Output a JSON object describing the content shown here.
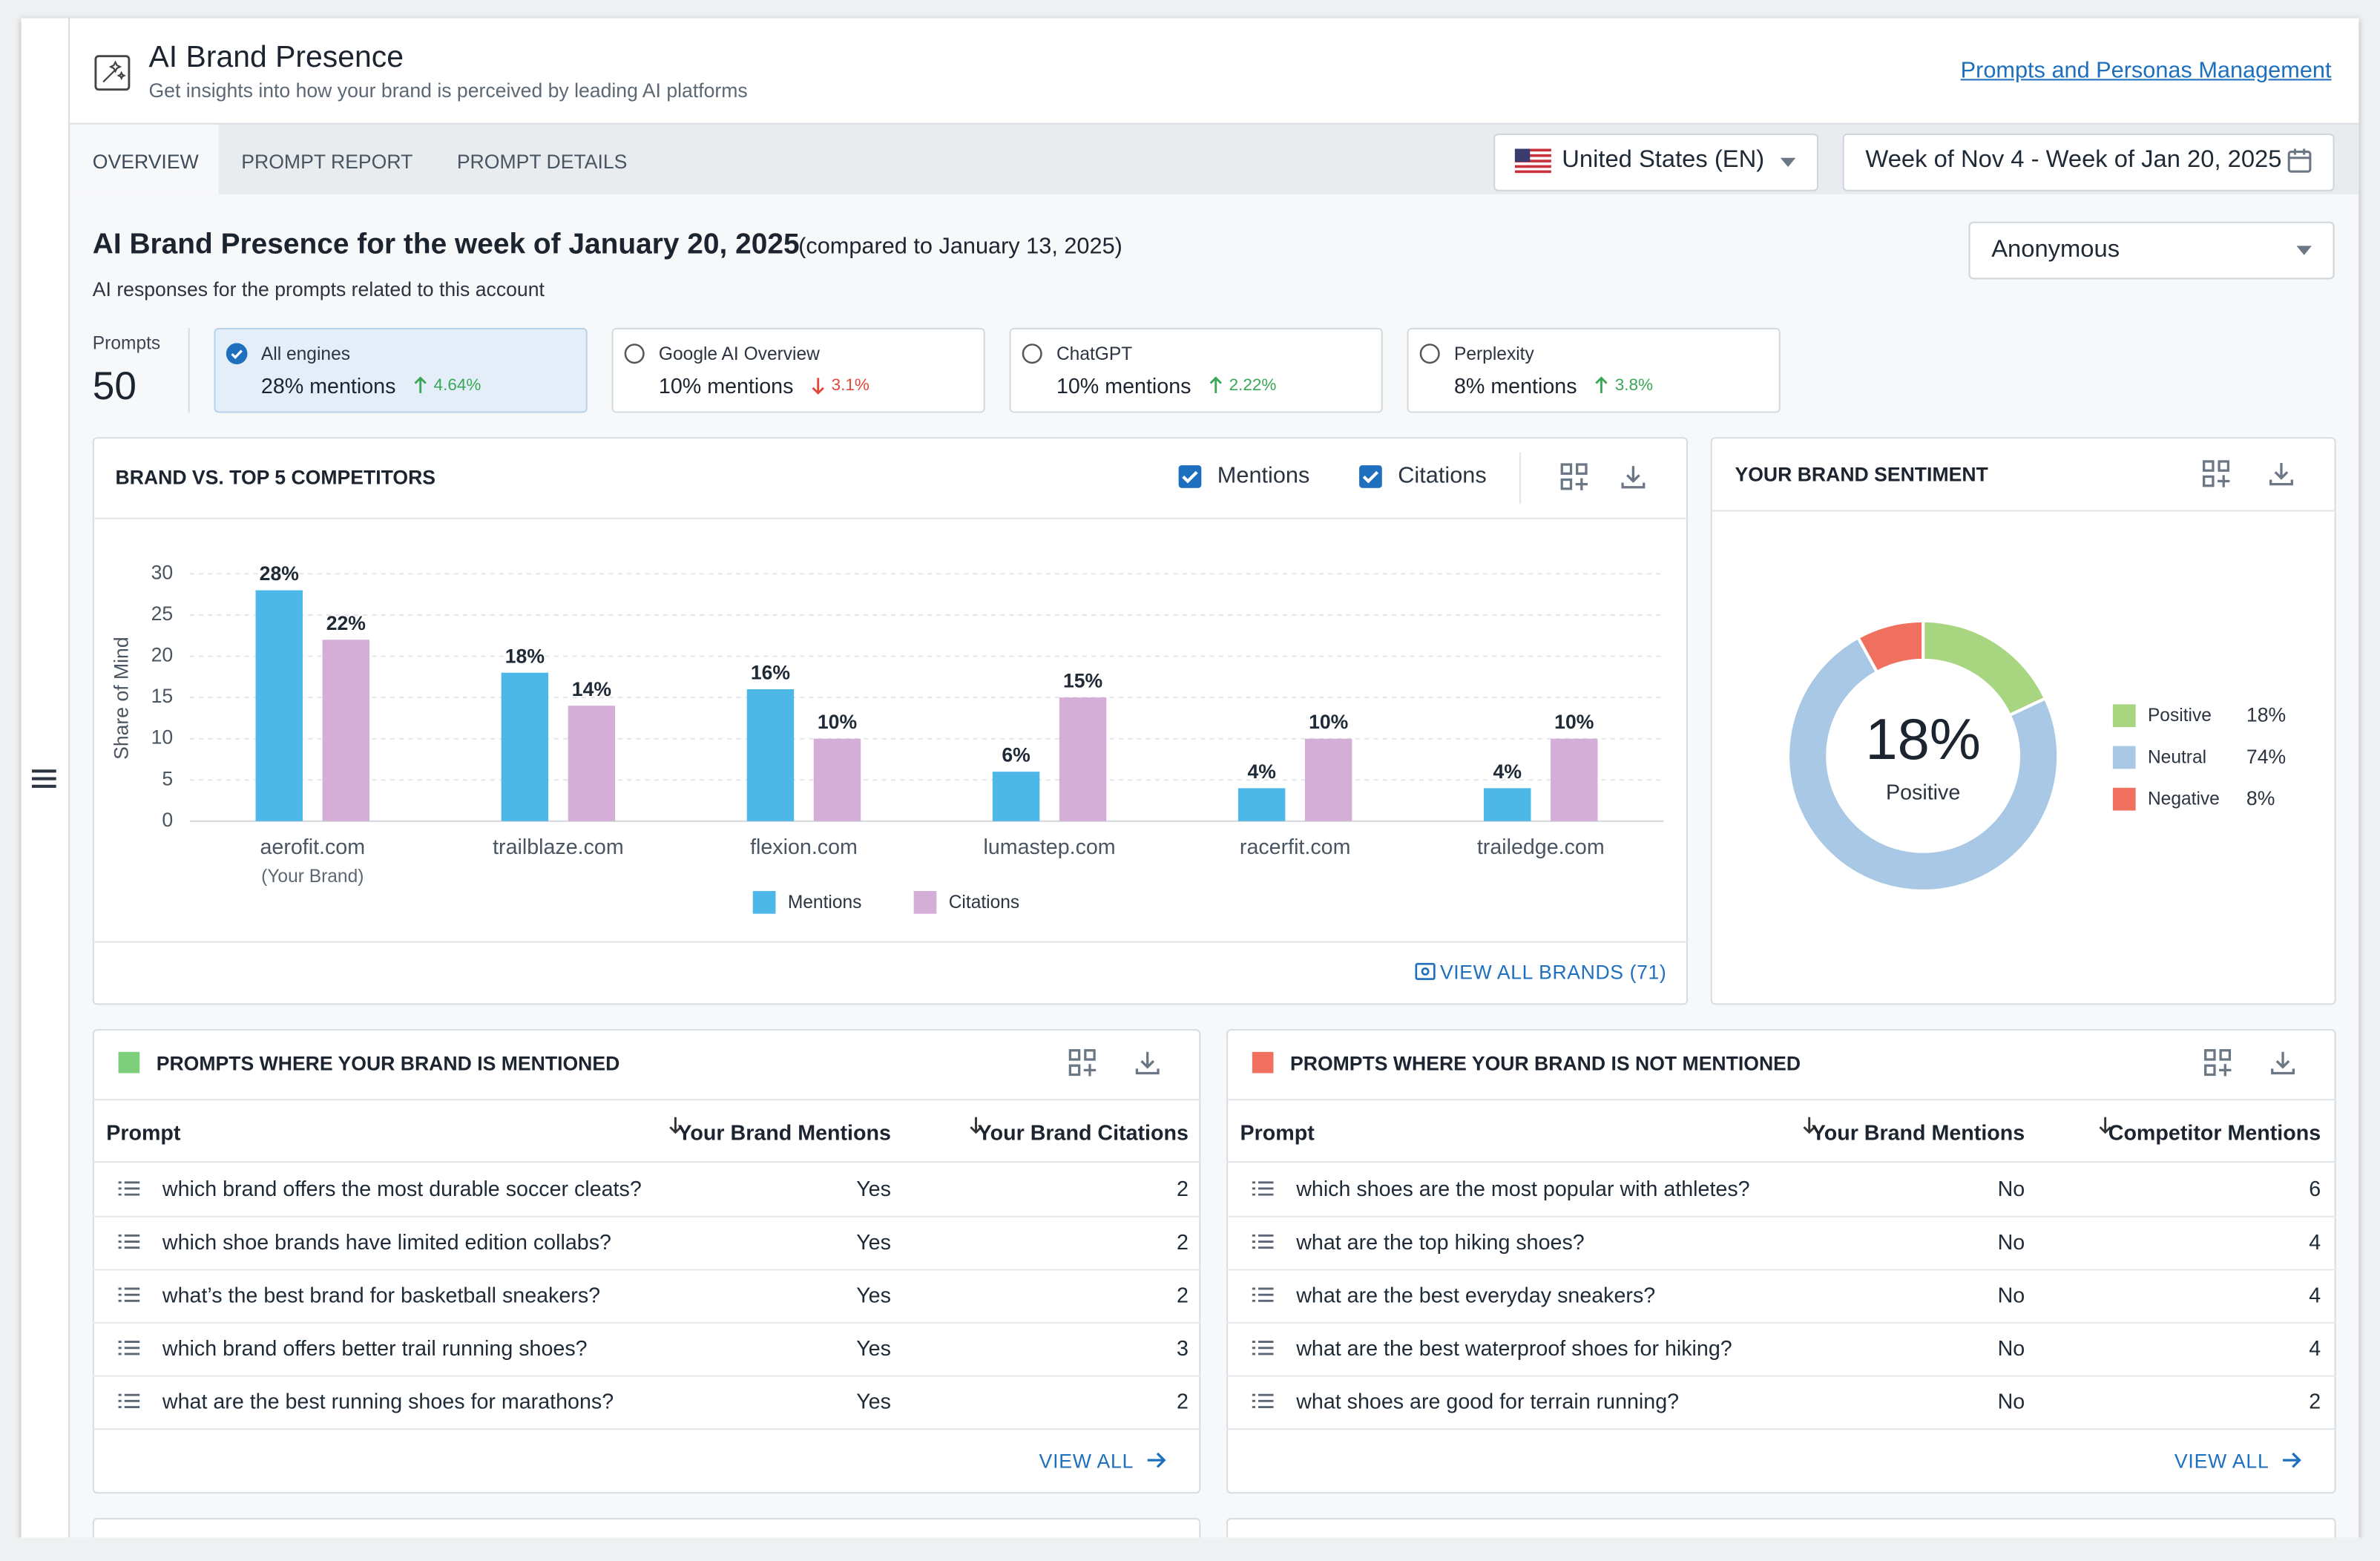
{
  "header": {
    "title": "AI Brand Presence",
    "subtitle": "Get insights into how your brand is perceived by leading AI platforms",
    "link": "Prompts and Personas Management"
  },
  "tabs": [
    "OVERVIEW",
    "PROMPT REPORT",
    "PROMPT DETAILS"
  ],
  "filters": {
    "country": "United States (EN)",
    "date_range": "Week of Nov 4 - Week of Jan 20, 2025",
    "persona": "Anonymous"
  },
  "summary": {
    "heading": "AI Brand Presence for the week of January 20, 2025",
    "comparison": "(compared to January 13, 2025)",
    "description": "AI responses for the prompts related to this account",
    "prompts_label": "Prompts",
    "prompts_count": 50
  },
  "engines": [
    {
      "name": "All engines",
      "mentions": "28% mentions",
      "change": "4.64%",
      "trend": "up",
      "selected": true
    },
    {
      "name": "Google AI Overview",
      "mentions": "10% mentions",
      "change": "3.1%",
      "trend": "down",
      "selected": false
    },
    {
      "name": "ChatGPT",
      "mentions": "10% mentions",
      "change": "2.22%",
      "trend": "up",
      "selected": false
    },
    {
      "name": "Perplexity",
      "mentions": "8% mentions",
      "change": "3.8%",
      "trend": "up",
      "selected": false
    }
  ],
  "chart_data": [
    {
      "type": "bar",
      "title": "BRAND VS. TOP 5 COMPETITORS",
      "ylabel": "Share of Mind",
      "categories": [
        "aerofit.com",
        "trailblaze.com",
        "flexion.com",
        "lumastep.com",
        "racerfit.com",
        "trailedge.com"
      ],
      "annotation": "(Your Brand)",
      "series": [
        {
          "name": "Mentions",
          "color": "#4db8e8",
          "values": [
            28,
            18,
            16,
            6,
            4,
            4
          ],
          "value_labels": [
            "28%",
            "18%",
            "16%",
            "6%",
            "4%",
            "4%"
          ]
        },
        {
          "name": "Citations",
          "color": "#d4aed6",
          "values": [
            22,
            14,
            10,
            15,
            10,
            10
          ],
          "value_labels": [
            "22%",
            "14%",
            "10%",
            "15%",
            "10%",
            "10%"
          ]
        }
      ],
      "ylim": [
        0,
        30
      ],
      "yticks": [
        0,
        5,
        10,
        15,
        20,
        25,
        30
      ],
      "grid": true,
      "legend": "bottom",
      "link": "VIEW ALL BRANDS (71)"
    },
    {
      "type": "pie",
      "title": "YOUR BRAND SENTIMENT",
      "categories": [
        "Positive",
        "Neutral",
        "Negative"
      ],
      "values": [
        18,
        74,
        8
      ],
      "value_labels": [
        "18%",
        "74%",
        "8%"
      ],
      "colors": [
        "#a8d57f",
        "#a9c8e6",
        "#f0705f"
      ],
      "donut": true,
      "legend": "right"
    }
  ],
  "tables": [
    {
      "title": "PROMPTS WHERE YOUR BRAND IS MENTIONED",
      "color": "#7dcf7b",
      "columns": [
        "Prompt",
        "Your Brand Mentions",
        "Your Brand Citations"
      ],
      "rows": [
        [
          "which brand offers the most durable soccer cleats?",
          "Yes",
          2
        ],
        [
          "which shoe brands have limited edition collabs?",
          "Yes",
          2
        ],
        [
          "what’s the best brand for basketball sneakers?",
          "Yes",
          2
        ],
        [
          "which brand offers better trail running shoes?",
          "Yes",
          3
        ],
        [
          "what are the best running shoes for marathons?",
          "Yes",
          2
        ]
      ],
      "link": "VIEW ALL"
    },
    {
      "title": "PROMPTS WHERE YOUR BRAND IS NOT MENTIONED",
      "color": "#f0705f",
      "columns": [
        "Prompt",
        "Your Brand Mentions",
        "Competitor Mentions"
      ],
      "rows": [
        [
          "which shoes are the most popular with athletes?",
          "No",
          6
        ],
        [
          "what are the top hiking shoes?",
          "No",
          4
        ],
        [
          "what are the best everyday sneakers?",
          "No",
          4
        ],
        [
          "what are the best waterproof shoes for hiking?",
          "No",
          4
        ],
        [
          "what shoes are good for terrain running?",
          "No",
          2
        ]
      ],
      "link": "VIEW ALL"
    }
  ]
}
